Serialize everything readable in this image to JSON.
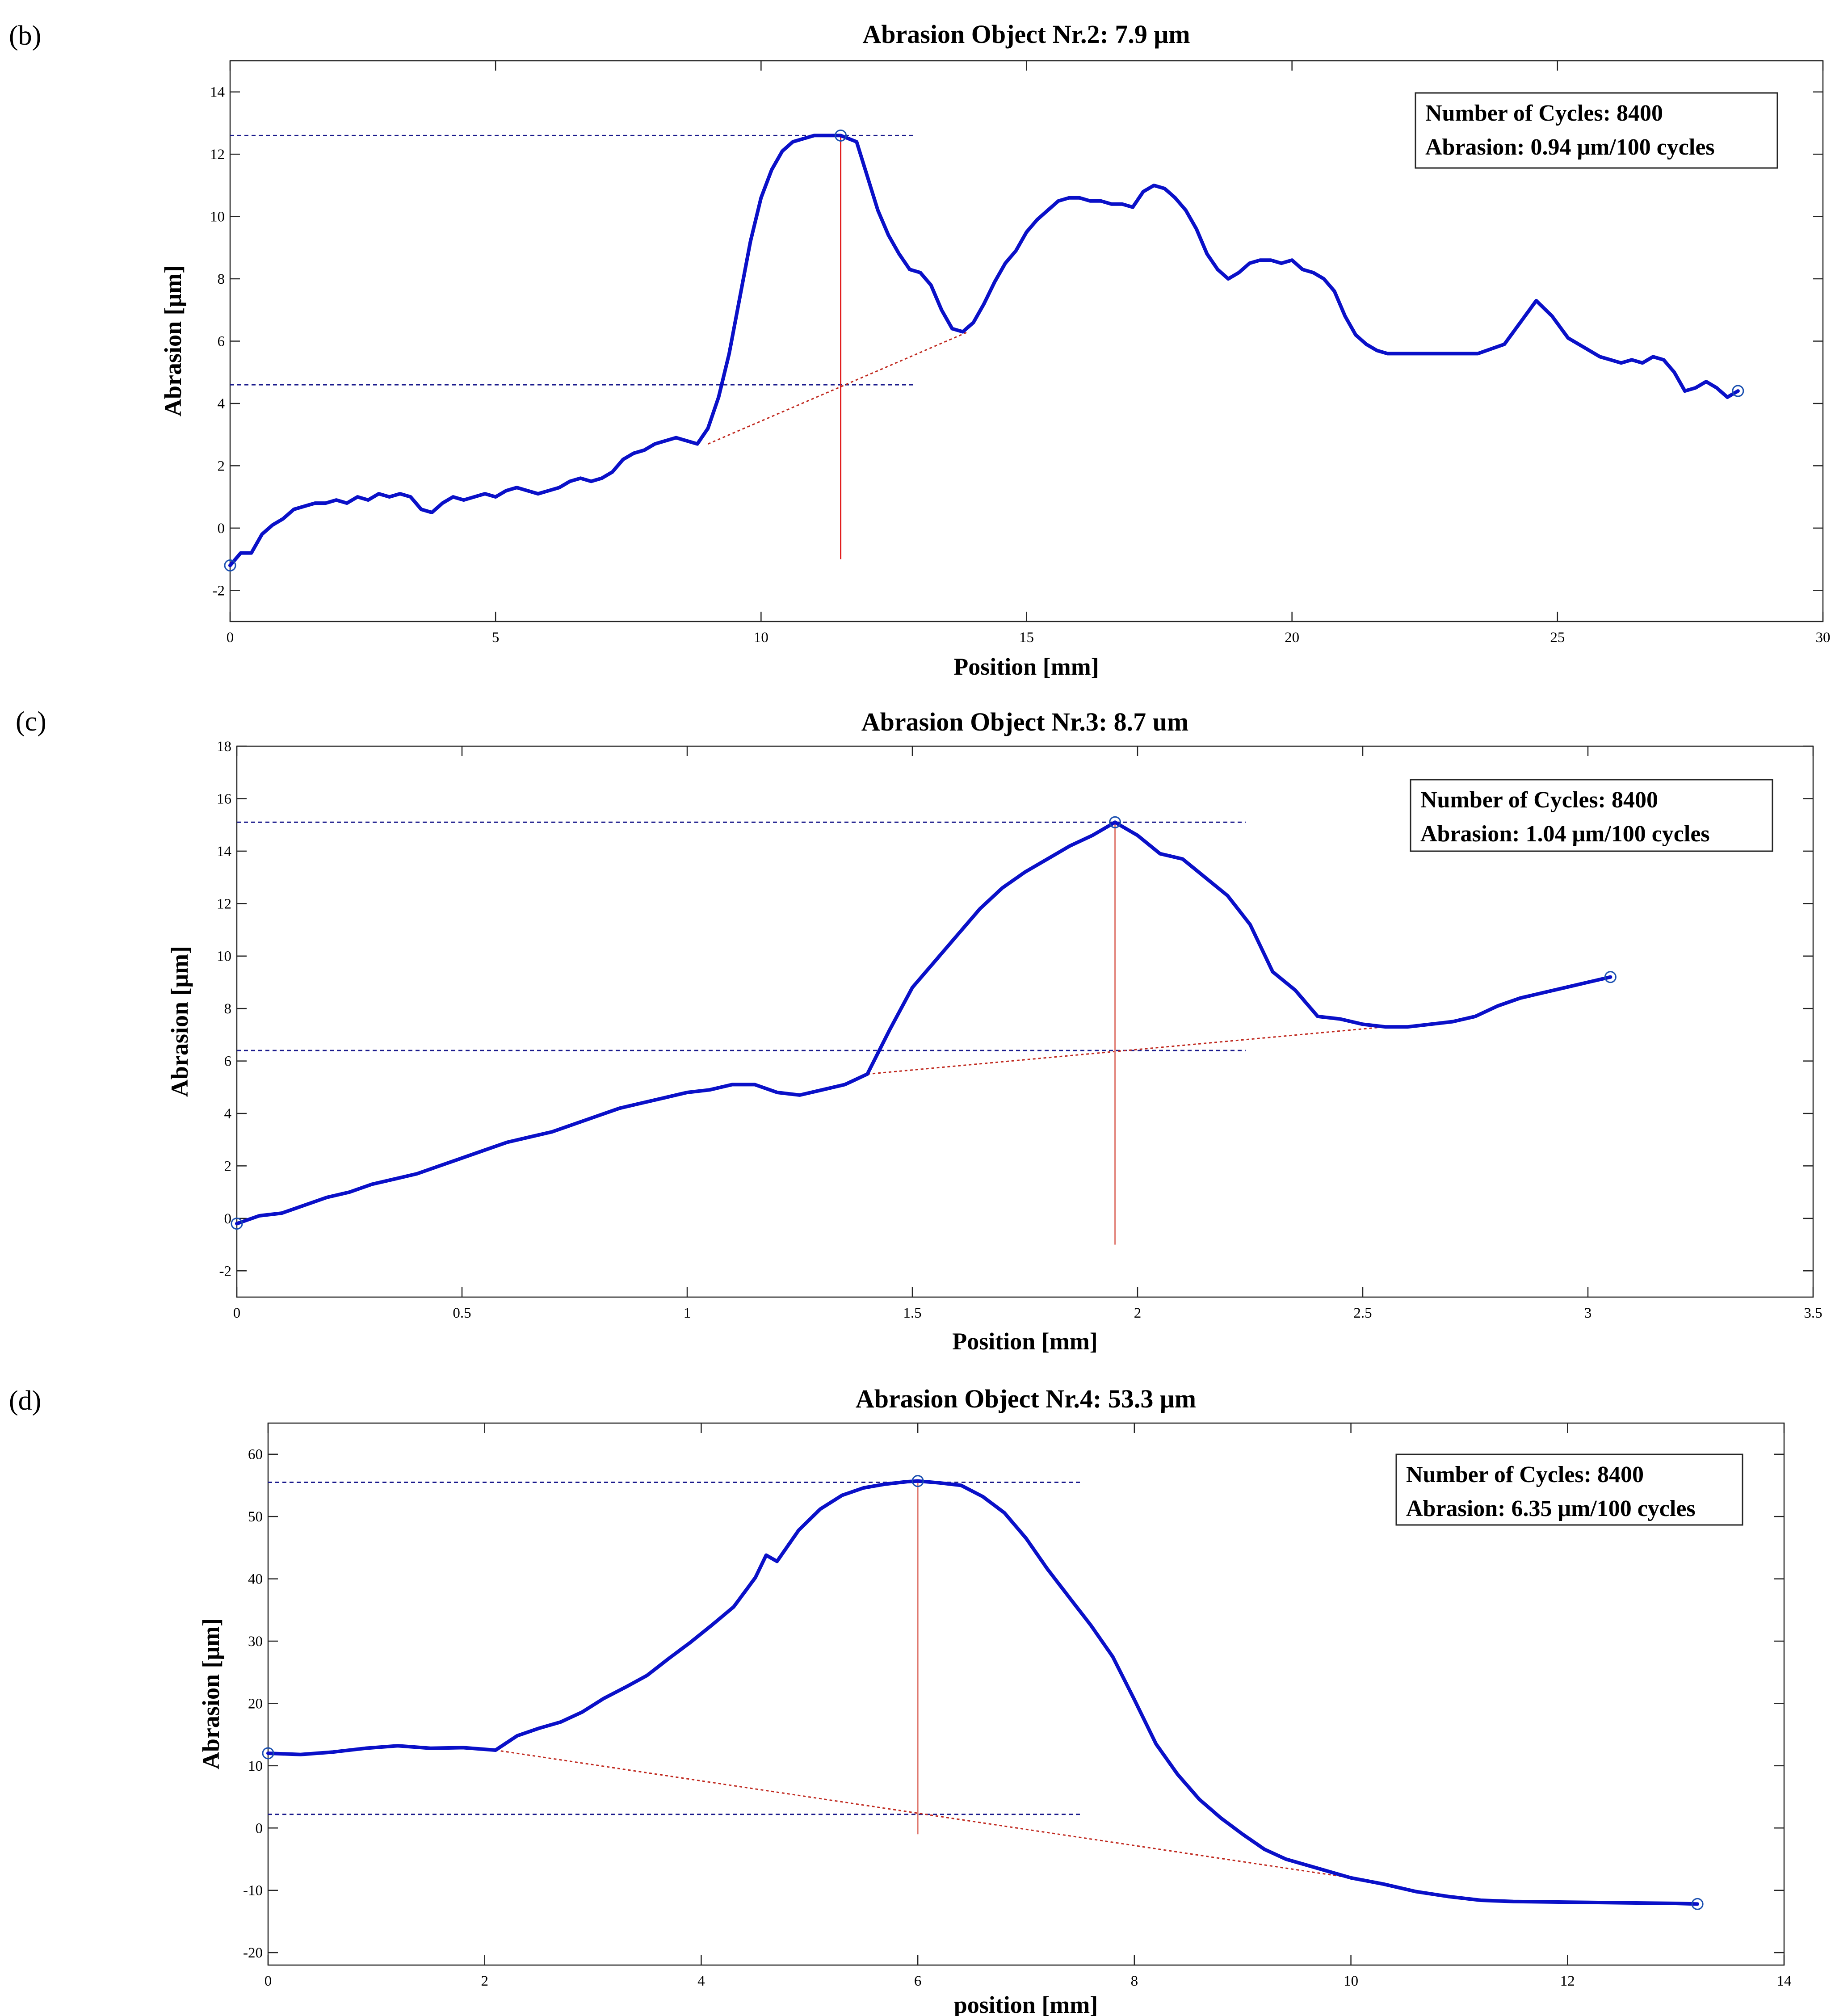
{
  "panels": [
    {
      "label": "(b)"
    },
    {
      "label": "(c)"
    },
    {
      "label": "(d)"
    }
  ],
  "chart_data": [
    {
      "type": "line",
      "title": "Abrasion  Object  Nr.2:  7.9 μm",
      "xlabel": "Position  [mm]",
      "ylabel": "Abrasion  [μm]",
      "xlim": [
        0,
        30
      ],
      "ylim": [
        -3,
        15
      ],
      "xticks": [
        0,
        5,
        10,
        15,
        20,
        25,
        30
      ],
      "yticks": [
        -2,
        0,
        2,
        4,
        6,
        8,
        10,
        12,
        14
      ],
      "xtick_labels": [
        "0",
        "5",
        "10",
        "15",
        "20",
        "25",
        "30"
      ],
      "ytick_labels": [
        "-2",
        "0",
        "2",
        "4",
        "6",
        "8",
        "10",
        "12",
        "14"
      ],
      "grid": false,
      "legend_position": "top-right",
      "legend": [
        "Number of Cycles: 8400",
        "Abrasion: 0.94 μm/100 cycles"
      ],
      "series": [
        {
          "color": "#0a10c8",
          "x": [
            0,
            0.2,
            0.4,
            0.6,
            0.8,
            1.0,
            1.2,
            1.4,
            1.6,
            1.8,
            2.0,
            2.2,
            2.4,
            2.6,
            2.8,
            3.0,
            3.2,
            3.4,
            3.6,
            3.8,
            4.0,
            4.2,
            4.4,
            4.6,
            4.8,
            5.0,
            5.2,
            5.4,
            5.6,
            5.8,
            6.0,
            6.2,
            6.4,
            6.6,
            6.8,
            7.0,
            7.2,
            7.4,
            7.6,
            7.8,
            8.0,
            8.2,
            8.4,
            8.6,
            8.8,
            9.0,
            9.2,
            9.4,
            9.6,
            9.8,
            10.0,
            10.2,
            10.4,
            10.6,
            10.8,
            11.0,
            11.2,
            11.5,
            11.8,
            12.0,
            12.2,
            12.4,
            12.6,
            12.8,
            13.0,
            13.2,
            13.4,
            13.6,
            13.8,
            14.0,
            14.2,
            14.4,
            14.6,
            14.8,
            15.0,
            15.2,
            15.4,
            15.6,
            15.8,
            16.0,
            16.2,
            16.4,
            16.6,
            16.8,
            17.0,
            17.2,
            17.4,
            17.6,
            17.8,
            18.0,
            18.2,
            18.4,
            18.6,
            18.8,
            19.0,
            19.2,
            19.4,
            19.6,
            19.8,
            20.0,
            20.2,
            20.4,
            20.6,
            20.8,
            21.0,
            21.2,
            21.4,
            21.6,
            21.8,
            22.0,
            22.5,
            23.0,
            23.5,
            24.0,
            24.3,
            24.6,
            24.9,
            25.2,
            25.5,
            25.8,
            26.0,
            26.2,
            26.4,
            26.6,
            26.8,
            27.0,
            27.2,
            27.4,
            27.6,
            27.8,
            28.0,
            28.2,
            28.4
          ],
          "y": [
            -1.2,
            -0.8,
            -0.8,
            -0.2,
            0.1,
            0.3,
            0.6,
            0.7,
            0.8,
            0.8,
            0.9,
            0.8,
            1.0,
            0.9,
            1.1,
            1.0,
            1.1,
            1.0,
            0.6,
            0.5,
            0.8,
            1.0,
            0.9,
            1.0,
            1.1,
            1.0,
            1.2,
            1.3,
            1.2,
            1.1,
            1.2,
            1.3,
            1.5,
            1.6,
            1.5,
            1.6,
            1.8,
            2.2,
            2.4,
            2.5,
            2.7,
            2.8,
            2.9,
            2.8,
            2.7,
            3.2,
            4.2,
            5.6,
            7.4,
            9.2,
            10.6,
            11.5,
            12.1,
            12.4,
            12.5,
            12.6,
            12.6,
            12.6,
            12.4,
            11.3,
            10.2,
            9.4,
            8.8,
            8.3,
            8.2,
            7.8,
            7.0,
            6.4,
            6.3,
            6.6,
            7.2,
            7.9,
            8.5,
            8.9,
            9.5,
            9.9,
            10.2,
            10.5,
            10.6,
            10.6,
            10.5,
            10.5,
            10.4,
            10.4,
            10.3,
            10.8,
            11.0,
            10.9,
            10.6,
            10.2,
            9.6,
            8.8,
            8.3,
            8.0,
            8.2,
            8.5,
            8.6,
            8.6,
            8.5,
            8.6,
            8.3,
            8.2,
            8.0,
            7.6,
            6.8,
            6.2,
            5.9,
            5.7,
            5.6,
            5.6,
            5.6,
            5.6,
            5.6,
            5.9,
            6.6,
            7.3,
            6.8,
            6.1,
            5.8,
            5.5,
            5.4,
            5.3,
            5.4,
            5.3,
            5.5,
            5.4,
            5.0,
            4.4,
            4.5,
            4.7,
            4.5,
            4.2,
            4.4
          ]
        }
      ],
      "markers": [
        [
          0,
          -1.2
        ],
        [
          11.5,
          12.6
        ],
        [
          28.4,
          4.4
        ]
      ],
      "hlines": [
        {
          "y": 12.6,
          "x0": 0,
          "x1": 12.9
        },
        {
          "y": 4.6,
          "x0": 0,
          "x1": 12.9
        }
      ],
      "vline": {
        "x": 11.5,
        "y0": -1.0,
        "y1": 12.6
      },
      "baseline": {
        "x0": 9.0,
        "y0": 2.7,
        "x1": 13.9,
        "y1": 6.3
      }
    },
    {
      "type": "line",
      "title": "Abrasion Object Nr.3:  8.7 um",
      "xlabel": "Position  [mm]",
      "ylabel": "Abrasion  [μm]",
      "xlim": [
        0,
        3.5
      ],
      "ylim": [
        -3,
        18
      ],
      "xticks": [
        0,
        0.5,
        1,
        1.5,
        2,
        2.5,
        3,
        3.5
      ],
      "yticks": [
        -2,
        0,
        2,
        4,
        6,
        8,
        10,
        12,
        14,
        16,
        18
      ],
      "xtick_labels": [
        "0",
        "0.5",
        "1",
        "1.5",
        "2",
        "2.5",
        "3",
        "3.5"
      ],
      "ytick_labels": [
        "-2",
        "0",
        "2",
        "4",
        "6",
        "8",
        "10",
        "12",
        "14",
        "16",
        "18"
      ],
      "grid": false,
      "legend_position": "top-right",
      "legend": [
        "Number of Cycles: 8400",
        "Abrasion: 1.04 μm/100 cycles"
      ],
      "series": [
        {
          "color": "#0a10c8",
          "x": [
            0,
            0.05,
            0.1,
            0.15,
            0.2,
            0.25,
            0.3,
            0.35,
            0.4,
            0.45,
            0.5,
            0.55,
            0.6,
            0.65,
            0.7,
            0.75,
            0.8,
            0.85,
            0.9,
            0.95,
            1.0,
            1.05,
            1.1,
            1.15,
            1.2,
            1.25,
            1.3,
            1.35,
            1.4,
            1.45,
            1.5,
            1.55,
            1.6,
            1.65,
            1.7,
            1.75,
            1.8,
            1.85,
            1.9,
            1.95,
            2.0,
            2.05,
            2.1,
            2.15,
            2.2,
            2.25,
            2.3,
            2.35,
            2.4,
            2.45,
            2.5,
            2.55,
            2.6,
            2.65,
            2.7,
            2.75,
            2.8,
            2.85,
            2.9,
            2.95,
            3.0,
            3.05
          ],
          "y": [
            -0.2,
            0.1,
            0.2,
            0.5,
            0.8,
            1.0,
            1.3,
            1.5,
            1.7,
            2.0,
            2.3,
            2.6,
            2.9,
            3.1,
            3.3,
            3.6,
            3.9,
            4.2,
            4.4,
            4.6,
            4.8,
            4.9,
            5.1,
            5.1,
            4.8,
            4.7,
            4.9,
            5.1,
            5.5,
            7.2,
            8.8,
            9.8,
            10.8,
            11.8,
            12.6,
            13.2,
            13.7,
            14.2,
            14.6,
            15.1,
            14.6,
            13.9,
            13.7,
            13.0,
            12.3,
            11.2,
            9.4,
            8.7,
            7.7,
            7.6,
            7.4,
            7.3,
            7.3,
            7.4,
            7.5,
            7.7,
            8.1,
            8.4,
            8.6,
            8.8,
            9.0,
            9.2
          ]
        }
      ],
      "markers": [
        [
          0,
          -0.2
        ],
        [
          1.95,
          15.1
        ],
        [
          3.05,
          9.2
        ]
      ],
      "hlines": [
        {
          "y": 15.1,
          "x0": 0,
          "x1": 2.24
        },
        {
          "y": 6.4,
          "x0": 0,
          "x1": 2.24
        }
      ],
      "vline": {
        "x": 1.95,
        "y0": -1.0,
        "y1": 15.1
      },
      "baseline": {
        "x0": 1.4,
        "y0": 5.5,
        "x1": 2.55,
        "y1": 7.3
      }
    },
    {
      "type": "line",
      "title": "Abrasion Object Nr.4:  53.3 μm",
      "xlabel": "position  [mm]",
      "ylabel": "Abrasion  [μm]",
      "xlim": [
        0,
        14
      ],
      "ylim": [
        -22,
        65
      ],
      "xticks": [
        0,
        2,
        4,
        6,
        8,
        10,
        12,
        14
      ],
      "yticks": [
        -20,
        -10,
        0,
        10,
        20,
        30,
        40,
        50,
        60
      ],
      "xtick_labels": [
        "0",
        "2",
        "4",
        "6",
        "8",
        "10",
        "12",
        "14"
      ],
      "ytick_labels": [
        "-20",
        "-10",
        "0",
        "10",
        "20",
        "30",
        "40",
        "50",
        "60"
      ],
      "grid": false,
      "legend_position": "top-right",
      "legend": [
        "Number of Cycles: 8400",
        "Abrasion: 6.35 μm/100 cycles"
      ],
      "series": [
        {
          "color": "#0a10c8",
          "x": [
            0,
            0.3,
            0.6,
            0.9,
            1.2,
            1.5,
            1.8,
            2.1,
            2.3,
            2.5,
            2.7,
            2.9,
            3.1,
            3.3,
            3.5,
            3.7,
            3.9,
            4.1,
            4.3,
            4.5,
            4.6,
            4.7,
            4.9,
            5.1,
            5.3,
            5.5,
            5.7,
            5.9,
            6.0,
            6.2,
            6.4,
            6.6,
            6.8,
            7.0,
            7.2,
            7.4,
            7.6,
            7.8,
            8.0,
            8.2,
            8.4,
            8.6,
            8.8,
            9.0,
            9.2,
            9.4,
            9.6,
            9.8,
            10.0,
            10.3,
            10.6,
            10.9,
            11.2,
            11.5,
            12.0,
            12.5,
            13.0,
            13.2
          ],
          "y": [
            12.0,
            11.8,
            12.2,
            12.8,
            13.2,
            12.8,
            12.9,
            12.5,
            14.8,
            16.0,
            17.0,
            18.6,
            20.8,
            22.6,
            24.5,
            27.2,
            29.8,
            32.6,
            35.5,
            40.2,
            43.8,
            42.8,
            47.8,
            51.2,
            53.4,
            54.6,
            55.2,
            55.6,
            55.7,
            55.4,
            55.0,
            53.2,
            50.6,
            46.5,
            41.5,
            37.0,
            32.5,
            27.5,
            20.6,
            13.5,
            8.6,
            4.6,
            1.6,
            -1.0,
            -3.4,
            -5.0,
            -6.0,
            -7.0,
            -8.0,
            -9.0,
            -10.2,
            -11.0,
            -11.6,
            -11.8,
            -11.9,
            -12.0,
            -12.1,
            -12.2
          ]
        }
      ],
      "markers": [
        [
          0,
          12.0
        ],
        [
          6.0,
          55.7
        ],
        [
          13.2,
          -12.2
        ]
      ],
      "hlines": [
        {
          "y": 55.5,
          "x0": 0,
          "x1": 7.5
        },
        {
          "y": 2.2,
          "x0": 0,
          "x1": 7.5
        }
      ],
      "vline": {
        "x": 6.0,
        "y0": -1.0,
        "y1": 55.7
      },
      "baseline": {
        "x0": 2.1,
        "y0": 12.5,
        "x1": 10.0,
        "y1": -8.0
      }
    }
  ]
}
